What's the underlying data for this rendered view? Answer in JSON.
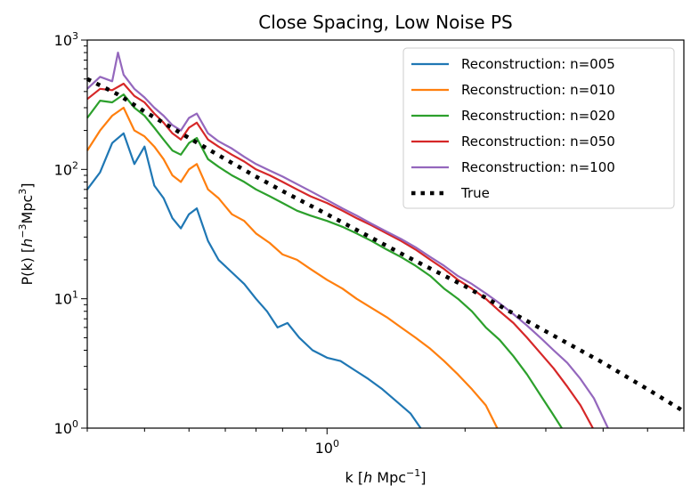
{
  "chart_data": {
    "type": "line",
    "title": "Close Spacing, Low Noise PS",
    "xlabel": {
      "prefix": "k [",
      "var": "h",
      "unit": " Mpc",
      "sup": "−1",
      "suffix": "]"
    },
    "ylabel": {
      "prefix": "P(k) [",
      "var": "h",
      "sup1": "−3",
      "unit": "Mpc",
      "sup2": "3",
      "suffix": "]"
    },
    "xscale": "log",
    "yscale": "log",
    "xlim": [
      0.3,
      6.0
    ],
    "ylim": [
      1,
      1000
    ],
    "x_tick_labels": [
      {
        "value": 1,
        "base": "10",
        "exp": "0"
      }
    ],
    "y_tick_labels": [
      {
        "value": 1,
        "base": "10",
        "exp": "0"
      },
      {
        "value": 10,
        "base": "10",
        "exp": "1"
      },
      {
        "value": 100,
        "base": "10",
        "exp": "2"
      },
      {
        "value": 1000,
        "base": "10",
        "exp": "3"
      }
    ],
    "legend_position": "top-right",
    "series": [
      {
        "name": "Reconstruction: n=005",
        "color": "#1f77b4",
        "style": "solid",
        "points": [
          [
            0.3,
            70
          ],
          [
            0.32,
            95
          ],
          [
            0.34,
            160
          ],
          [
            0.36,
            190
          ],
          [
            0.38,
            110
          ],
          [
            0.4,
            150
          ],
          [
            0.42,
            75
          ],
          [
            0.44,
            60
          ],
          [
            0.46,
            42
          ],
          [
            0.48,
            35
          ],
          [
            0.5,
            45
          ],
          [
            0.52,
            50
          ],
          [
            0.55,
            28
          ],
          [
            0.58,
            20
          ],
          [
            0.62,
            16
          ],
          [
            0.66,
            13
          ],
          [
            0.7,
            10
          ],
          [
            0.74,
            8
          ],
          [
            0.78,
            6
          ],
          [
            0.82,
            6.5
          ],
          [
            0.87,
            5
          ],
          [
            0.93,
            4
          ],
          [
            1.0,
            3.5
          ],
          [
            1.07,
            3.3
          ],
          [
            1.15,
            2.8
          ],
          [
            1.23,
            2.4
          ],
          [
            1.32,
            2.0
          ],
          [
            1.42,
            1.6
          ],
          [
            1.52,
            1.3
          ],
          [
            1.6,
            1.0
          ]
        ]
      },
      {
        "name": "Reconstruction: n=010",
        "color": "#ff7f0e",
        "style": "solid",
        "points": [
          [
            0.3,
            140
          ],
          [
            0.32,
            200
          ],
          [
            0.34,
            260
          ],
          [
            0.36,
            300
          ],
          [
            0.38,
            200
          ],
          [
            0.4,
            180
          ],
          [
            0.42,
            150
          ],
          [
            0.44,
            120
          ],
          [
            0.46,
            90
          ],
          [
            0.48,
            80
          ],
          [
            0.5,
            100
          ],
          [
            0.52,
            110
          ],
          [
            0.55,
            70
          ],
          [
            0.58,
            60
          ],
          [
            0.62,
            45
          ],
          [
            0.66,
            40
          ],
          [
            0.7,
            32
          ],
          [
            0.75,
            27
          ],
          [
            0.8,
            22
          ],
          [
            0.86,
            20
          ],
          [
            0.92,
            17
          ],
          [
            1.0,
            14
          ],
          [
            1.08,
            12
          ],
          [
            1.16,
            10
          ],
          [
            1.25,
            8.5
          ],
          [
            1.35,
            7.2
          ],
          [
            1.45,
            6
          ],
          [
            1.56,
            5
          ],
          [
            1.68,
            4.1
          ],
          [
            1.8,
            3.3
          ],
          [
            1.93,
            2.6
          ],
          [
            2.07,
            2.0
          ],
          [
            2.22,
            1.5
          ],
          [
            2.35,
            1.0
          ]
        ]
      },
      {
        "name": "Reconstruction: n=020",
        "color": "#2ca02c",
        "style": "solid",
        "points": [
          [
            0.3,
            250
          ],
          [
            0.32,
            340
          ],
          [
            0.34,
            330
          ],
          [
            0.36,
            380
          ],
          [
            0.38,
            300
          ],
          [
            0.4,
            260
          ],
          [
            0.42,
            210
          ],
          [
            0.44,
            170
          ],
          [
            0.46,
            140
          ],
          [
            0.48,
            130
          ],
          [
            0.5,
            160
          ],
          [
            0.52,
            175
          ],
          [
            0.55,
            120
          ],
          [
            0.58,
            105
          ],
          [
            0.62,
            90
          ],
          [
            0.66,
            80
          ],
          [
            0.7,
            70
          ],
          [
            0.75,
            62
          ],
          [
            0.8,
            55
          ],
          [
            0.86,
            48
          ],
          [
            0.92,
            44
          ],
          [
            1.0,
            40
          ],
          [
            1.08,
            36
          ],
          [
            1.16,
            32
          ],
          [
            1.25,
            28
          ],
          [
            1.35,
            24
          ],
          [
            1.45,
            21
          ],
          [
            1.56,
            18
          ],
          [
            1.68,
            15
          ],
          [
            1.8,
            12
          ],
          [
            1.93,
            10
          ],
          [
            2.07,
            8
          ],
          [
            2.22,
            6
          ],
          [
            2.38,
            4.8
          ],
          [
            2.55,
            3.6
          ],
          [
            2.73,
            2.6
          ],
          [
            2.92,
            1.8
          ],
          [
            3.1,
            1.3
          ],
          [
            3.25,
            1.0
          ]
        ]
      },
      {
        "name": "Reconstruction: n=050",
        "color": "#d62728",
        "style": "solid",
        "points": [
          [
            0.3,
            350
          ],
          [
            0.32,
            420
          ],
          [
            0.34,
            410
          ],
          [
            0.36,
            460
          ],
          [
            0.38,
            370
          ],
          [
            0.4,
            330
          ],
          [
            0.42,
            270
          ],
          [
            0.44,
            230
          ],
          [
            0.46,
            190
          ],
          [
            0.48,
            170
          ],
          [
            0.5,
            210
          ],
          [
            0.52,
            230
          ],
          [
            0.55,
            170
          ],
          [
            0.58,
            150
          ],
          [
            0.62,
            130
          ],
          [
            0.66,
            115
          ],
          [
            0.7,
            100
          ],
          [
            0.75,
            90
          ],
          [
            0.8,
            80
          ],
          [
            0.86,
            70
          ],
          [
            0.92,
            62
          ],
          [
            1.0,
            55
          ],
          [
            1.08,
            48
          ],
          [
            1.16,
            42
          ],
          [
            1.25,
            37
          ],
          [
            1.35,
            32
          ],
          [
            1.45,
            28
          ],
          [
            1.56,
            24
          ],
          [
            1.68,
            20
          ],
          [
            1.8,
            17
          ],
          [
            1.93,
            14
          ],
          [
            2.07,
            12
          ],
          [
            2.22,
            10
          ],
          [
            2.38,
            8
          ],
          [
            2.55,
            6.5
          ],
          [
            2.73,
            5
          ],
          [
            2.92,
            3.8
          ],
          [
            3.12,
            2.9
          ],
          [
            3.34,
            2.1
          ],
          [
            3.57,
            1.5
          ],
          [
            3.8,
            1.0
          ]
        ]
      },
      {
        "name": "Reconstruction: n=100",
        "color": "#9467bd",
        "style": "solid",
        "points": [
          [
            0.3,
            420
          ],
          [
            0.32,
            520
          ],
          [
            0.34,
            480
          ],
          [
            0.35,
            800
          ],
          [
            0.36,
            540
          ],
          [
            0.38,
            420
          ],
          [
            0.4,
            360
          ],
          [
            0.42,
            300
          ],
          [
            0.44,
            260
          ],
          [
            0.46,
            220
          ],
          [
            0.48,
            200
          ],
          [
            0.5,
            250
          ],
          [
            0.52,
            270
          ],
          [
            0.55,
            190
          ],
          [
            0.58,
            165
          ],
          [
            0.62,
            145
          ],
          [
            0.66,
            125
          ],
          [
            0.7,
            110
          ],
          [
            0.75,
            98
          ],
          [
            0.8,
            88
          ],
          [
            0.86,
            77
          ],
          [
            0.92,
            68
          ],
          [
            1.0,
            58
          ],
          [
            1.08,
            50
          ],
          [
            1.16,
            44
          ],
          [
            1.25,
            38
          ],
          [
            1.35,
            33
          ],
          [
            1.45,
            29
          ],
          [
            1.56,
            25
          ],
          [
            1.68,
            21
          ],
          [
            1.8,
            18
          ],
          [
            1.93,
            15
          ],
          [
            2.07,
            13
          ],
          [
            2.22,
            11
          ],
          [
            2.38,
            9.2
          ],
          [
            2.55,
            7.6
          ],
          [
            2.73,
            6.2
          ],
          [
            2.92,
            5
          ],
          [
            3.12,
            4
          ],
          [
            3.34,
            3.2
          ],
          [
            3.57,
            2.4
          ],
          [
            3.82,
            1.7
          ],
          [
            4.1,
            1.0
          ]
        ]
      },
      {
        "name": "True",
        "color": "#000000",
        "style": "dotted",
        "points": [
          [
            0.3,
            500
          ],
          [
            0.35,
            380
          ],
          [
            0.4,
            280
          ],
          [
            0.5,
            175
          ],
          [
            0.6,
            120
          ],
          [
            0.7,
            88
          ],
          [
            0.8,
            68
          ],
          [
            1.0,
            45
          ],
          [
            1.2,
            32
          ],
          [
            1.5,
            21
          ],
          [
            2.0,
            12.5
          ],
          [
            2.5,
            8
          ],
          [
            3.0,
            5.6
          ],
          [
            4.0,
            3.2
          ],
          [
            5.0,
            2.0
          ],
          [
            6.0,
            1.35
          ]
        ]
      }
    ]
  }
}
